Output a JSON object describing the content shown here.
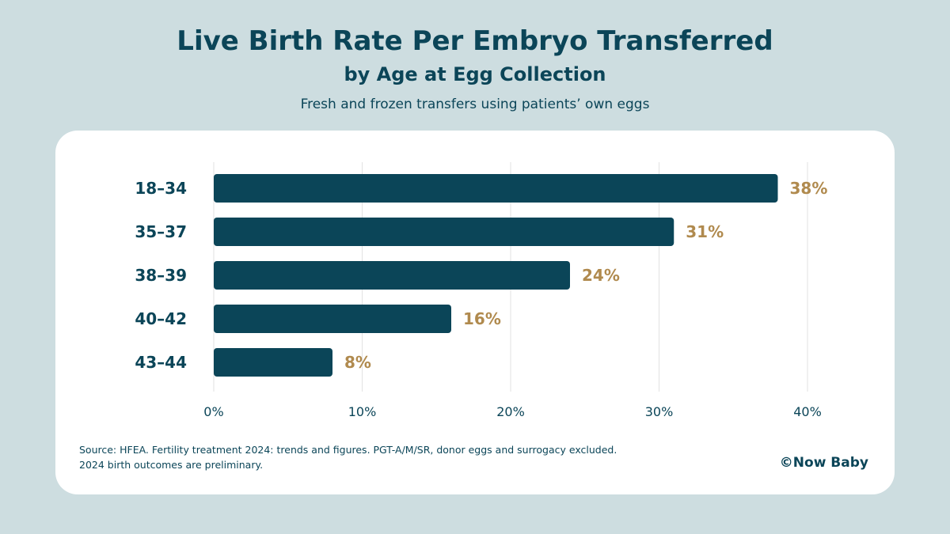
{
  "header": {
    "title": "Live Birth Rate Per Embryo Transferred",
    "subtitle": "by Age at Egg Collection",
    "description": "Fresh and frozen transfers using patients’ own eggs"
  },
  "chart_data": {
    "type": "bar",
    "orientation": "horizontal",
    "categories": [
      "18–34",
      "35–37",
      "38–39",
      "40–42",
      "43–44"
    ],
    "values": [
      38,
      31,
      24,
      16,
      8
    ],
    "value_labels": [
      "38%",
      "31%",
      "24%",
      "16%",
      "8%"
    ],
    "x_ticks": [
      0,
      10,
      20,
      30,
      40
    ],
    "x_tick_labels": [
      "0%",
      "10%",
      "20%",
      "30%",
      "40%"
    ],
    "xlim": [
      0,
      40
    ],
    "grid": "vertical",
    "colors": {
      "bar": "#0b4558",
      "value_label": "#b08a4e",
      "grid": "#e2e2e2",
      "text": "#0b4558"
    }
  },
  "footer": {
    "source_line1": "Source: HFEA. Fertility treatment 2024: trends and figures. PGT-A/M/SR, donor eggs and surrogacy excluded.",
    "source_line2": "2024 birth outcomes are preliminary.",
    "brand": "©Now Baby"
  }
}
